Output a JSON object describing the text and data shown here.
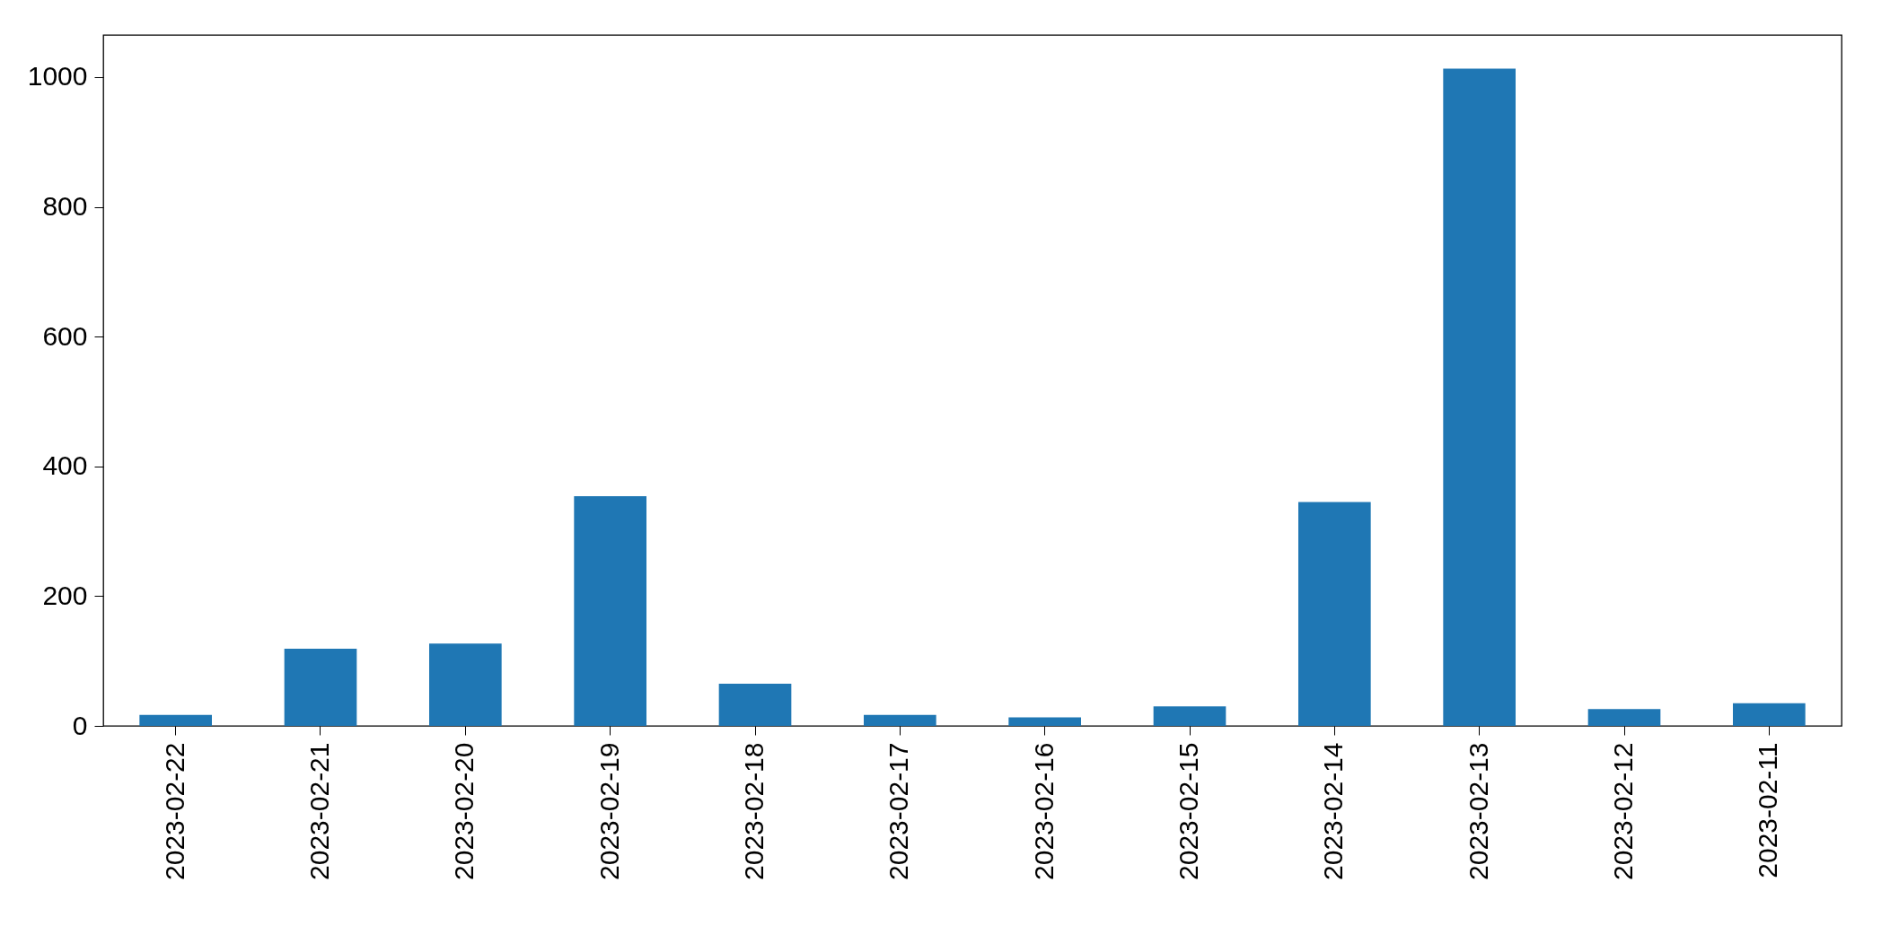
{
  "chart_data": {
    "type": "bar",
    "categories": [
      "2023-02-22",
      "2023-02-21",
      "2023-02-20",
      "2023-02-19",
      "2023-02-18",
      "2023-02-17",
      "2023-02-16",
      "2023-02-15",
      "2023-02-14",
      "2023-02-13",
      "2023-02-12",
      "2023-02-11"
    ],
    "values": [
      17,
      119,
      127,
      354,
      65,
      17,
      13,
      30,
      345,
      1013,
      26,
      35
    ],
    "color": "#1f77b4",
    "ylim": [
      0,
      1065
    ],
    "yticks": [
      0,
      200,
      400,
      600,
      800,
      1000
    ],
    "grid": false
  }
}
